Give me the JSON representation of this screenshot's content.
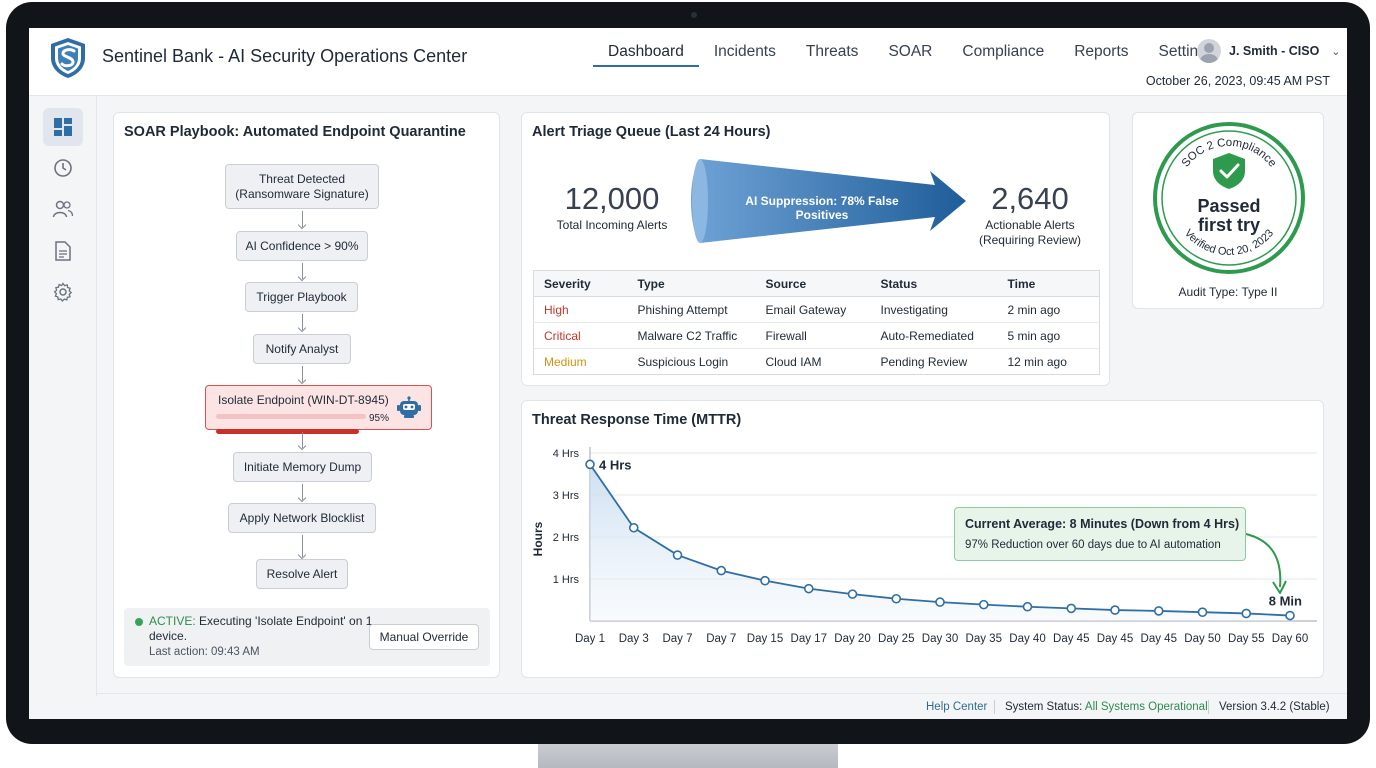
{
  "header": {
    "app_title": "Sentinel Bank - AI Security Operations Center",
    "nav": [
      "Dashboard",
      "Incidents",
      "Threats",
      "SOAR",
      "Compliance",
      "Reports",
      "Settings"
    ],
    "active_nav": "Dashboard",
    "user": "J. Smith - CISO",
    "datetime": "October 26, 2023, 09:45 AM PST"
  },
  "sidebar": {
    "items": [
      "dashboard-icon",
      "clock-icon",
      "users-icon",
      "document-icon",
      "gear-icon"
    ],
    "active": "dashboard-icon"
  },
  "playbook": {
    "title": "SOAR Playbook: Automated Endpoint Quarantine",
    "steps": [
      "Threat Detected\n(Ransomware Signature)",
      "AI Confidence > 90%",
      "Trigger Playbook",
      "Notify Analyst",
      "Isolate Endpoint (WIN-DT-8945)",
      "Initiate Memory Dump",
      "Apply Network Blocklist",
      "Resolve Alert"
    ],
    "active_step_progress": 95,
    "active_step_progress_label": "95%",
    "status_prefix": "ACTIVE:",
    "status_text": " Executing 'Isolate Endpoint' on 1 device.",
    "last_action": "Last action: 09:43 AM",
    "override_label": "Manual Override"
  },
  "triage": {
    "title": "Alert Triage Queue (Last 24 Hours)",
    "incoming_value": "12,000",
    "incoming_label": "Total Incoming Alerts",
    "funnel_label": "AI Suppression: 78% False Positives",
    "actionable_value": "2,640",
    "actionable_label_1": "Actionable Alerts",
    "actionable_label_2": "(Requiring Review)",
    "columns": [
      "Severity",
      "Type",
      "Source",
      "Status",
      "Time"
    ],
    "rows": [
      {
        "severity": "High",
        "type": "Phishing Attempt",
        "source": "Email Gateway",
        "status": "Investigating",
        "time": "2 min ago",
        "color": "#c0392b"
      },
      {
        "severity": "Critical",
        "type": "Malware C2 Traffic",
        "source": "Firewall",
        "status": "Auto-Remediated",
        "time": "5 min ago",
        "color": "#c0392b"
      },
      {
        "severity": "Medium",
        "type": "Suspicious Login",
        "source": "Cloud IAM",
        "status": "Pending Review",
        "time": "12 min ago",
        "color": "#d4920f"
      }
    ]
  },
  "compliance": {
    "arc_top": "SOC 2 Compliance",
    "passed_1": "Passed",
    "passed_2": "first try",
    "arc_bottom": "Verified Oct 20, 2023",
    "audit_type": "Audit Type: Type II",
    "color": "#2e9a4e"
  },
  "mttr": {
    "title": "Threat Response Time (MTTR)",
    "start_label": "4 Hrs",
    "end_label": "8 Min",
    "callout_title": "Current Average: 8 Minutes (Down from 4 Hrs)",
    "callout_sub": "97% Reduction over 60 days due to AI automation"
  },
  "chart_data": {
    "type": "line",
    "title": "Threat Response Time (MTTR)",
    "xlabel": "",
    "ylabel": "Hours",
    "y_ticks": [
      "1 Hrs",
      "2 Hrs",
      "3 Hrs",
      "4 Hrs"
    ],
    "ylim": [
      0,
      4
    ],
    "categories": [
      "Day 1",
      "Day 3",
      "Day 7",
      "Day 7",
      "Day 15",
      "Day 17",
      "Day 20",
      "Day 25",
      "Day 30",
      "Day 35",
      "Day 40",
      "Day 45",
      "Day 45",
      "Day 45",
      "Day 50",
      "Day 55",
      "Day 60"
    ],
    "values": [
      3.73,
      2.22,
      1.57,
      1.2,
      0.96,
      0.77,
      0.64,
      0.53,
      0.45,
      0.39,
      0.34,
      0.3,
      0.26,
      0.24,
      0.21,
      0.18,
      0.13
    ],
    "grid": true,
    "color": "#2f6ea5"
  },
  "footer": {
    "help": "Help Center",
    "status_prefix": "System Status: ",
    "status_value": "All Systems Operational",
    "version": "Version 3.4.2 (Stable)"
  }
}
